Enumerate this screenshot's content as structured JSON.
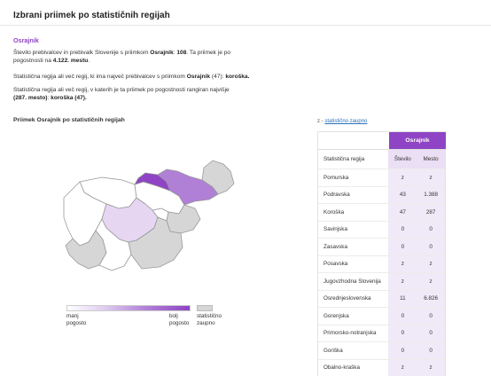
{
  "page_title": "Izbrani priimek po statističnih regijah",
  "surname": "Osrajnik",
  "summary": {
    "p1_a": "Število prebivalcev in prebivalk Slovenije s priimkom ",
    "p1_b": "Osrajnik",
    "p1_c": ": ",
    "p1_d": "108",
    "p1_e": ". Ta priimek je po",
    "p1_f": "pogostnosti na ",
    "p1_g": "4.122. mestu",
    "p1_h": ".",
    "p2_a": "Statistična regija ali več regij, ki ima največ prebivalcev s priimkom ",
    "p2_b": "Osrajnik",
    "p2_c": " (47): ",
    "p2_d": "koroška.",
    "p3_a": "Statistična regija ali več regij, v katerih je ta priimek po pogostnosti rangiran najvišje",
    "p3_b": "(287. mesto)",
    "p3_c": ": ",
    "p3_d": "koroška (47)."
  },
  "map": {
    "title": "Priimek Osrajnik po statističnih regijah",
    "colors": {
      "max": "#8e44c4",
      "mid": "#b07fd6",
      "low": "#e6d6f2",
      "zero": "#ffffff",
      "nodata": "#d6d6d6"
    }
  },
  "legend": {
    "note_prefix": "z - ",
    "note_link": "statistično zaupno",
    "less_1": "manj",
    "less_2": "pogosto",
    "more_1": "bolj",
    "more_2": "pogosto",
    "nodata_1": "statistično",
    "nodata_2": "zaupno"
  },
  "table": {
    "surname_header": "Osrajnik",
    "col_region": "Statistična regija",
    "col_count": "Število",
    "col_rank": "Mesto",
    "rows": [
      {
        "region": "Pomurska",
        "count": "z",
        "rank": "z"
      },
      {
        "region": "Podravska",
        "count": "43",
        "rank": "1.388"
      },
      {
        "region": "Koroška",
        "count": "47",
        "rank": "287"
      },
      {
        "region": "Savinjska",
        "count": "0",
        "rank": "0"
      },
      {
        "region": "Zasavska",
        "count": "0",
        "rank": "0"
      },
      {
        "region": "Posavska",
        "count": "z",
        "rank": "z"
      },
      {
        "region": "Jugovzhodna Slovenija",
        "count": "z",
        "rank": "z"
      },
      {
        "region": "Osrednjeslovenska",
        "count": "11",
        "rank": "6.826"
      },
      {
        "region": "Gorenjska",
        "count": "0",
        "rank": "0"
      },
      {
        "region": "Primorsko-notranjska",
        "count": "0",
        "rank": "0"
      },
      {
        "region": "Goriška",
        "count": "0",
        "rank": "0"
      },
      {
        "region": "Obalno-kraška",
        "count": "z",
        "rank": "z"
      }
    ]
  }
}
